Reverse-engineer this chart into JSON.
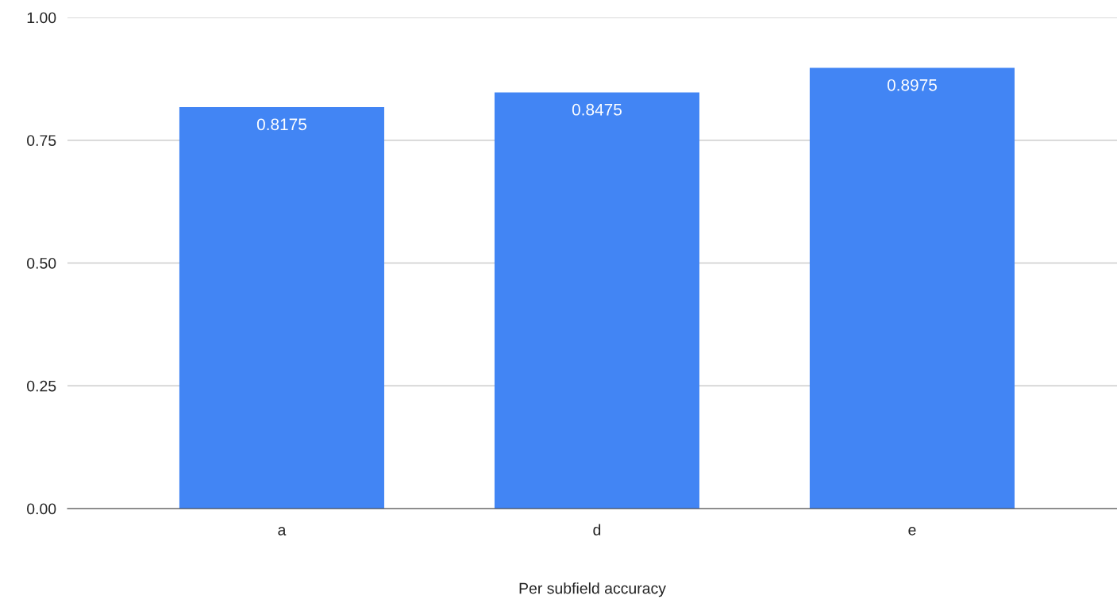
{
  "chart_data": {
    "type": "bar",
    "xlabel": "Per subfield accuracy",
    "categories": [
      "a",
      "d",
      "e"
    ],
    "series": [
      {
        "color": "#4285f4",
        "values": [
          0.8175,
          0.8475,
          0.8975
        ]
      }
    ],
    "ylim": [
      0,
      1
    ],
    "yticks": [
      {
        "value": 0,
        "label": "0.00"
      },
      {
        "value": 0.25,
        "label": "0.25"
      },
      {
        "value": 0.5,
        "label": "0.50"
      },
      {
        "value": 0.75,
        "label": "0.75"
      },
      {
        "value": 1,
        "label": "1.00"
      }
    ],
    "grid": "y",
    "data_labels": true,
    "legend": false
  }
}
